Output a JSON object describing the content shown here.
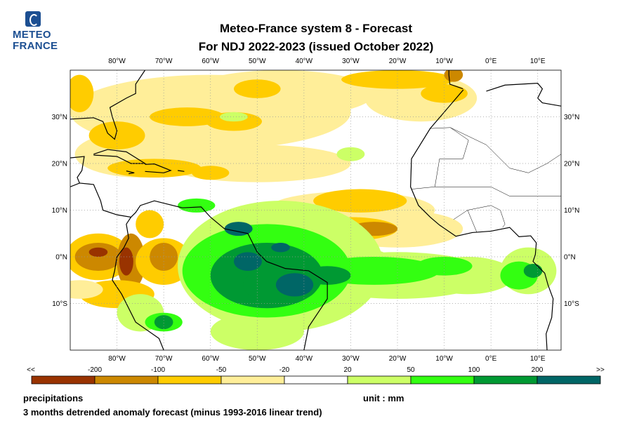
{
  "logo": {
    "line1": "METEO",
    "line2": "FRANCE"
  },
  "title": {
    "line1": "Meteo-France system 8  -  Forecast",
    "line2": "For NDJ 2022-2023      (issued October 2022)"
  },
  "map": {
    "lon_labels": [
      "80°W",
      "70°W",
      "60°W",
      "50°W",
      "40°W",
      "30°W",
      "20°W",
      "10°W",
      "0°E",
      "10°E"
    ],
    "lon_values": [
      -80,
      -70,
      -60,
      -50,
      -40,
      -30,
      -20,
      -10,
      0,
      10
    ],
    "lat_labels": [
      "30°N",
      "20°N",
      "10°N",
      "0°N",
      "10°S"
    ],
    "lat_values": [
      30,
      20,
      10,
      0,
      -10
    ],
    "extent": {
      "lon": [
        -90,
        15
      ],
      "lat": [
        -20,
        40
      ]
    },
    "grid": "dotted"
  },
  "legend": {
    "ends": [
      "<<",
      ">>"
    ],
    "thresholds": [
      "-200",
      "-100",
      "-50",
      "-20",
      "20",
      "50",
      "100",
      "200"
    ],
    "colors": [
      "#993300",
      "#cc8800",
      "#ffcc00",
      "#ffee99",
      "#ffffff",
      "#ccff66",
      "#33ff11",
      "#009933",
      "#006666"
    ]
  },
  "footer": {
    "variable": "precipitations",
    "unit": "unit : mm",
    "description": "3 months detrended anomaly forecast (minus 1993-2016 linear trend)"
  }
}
